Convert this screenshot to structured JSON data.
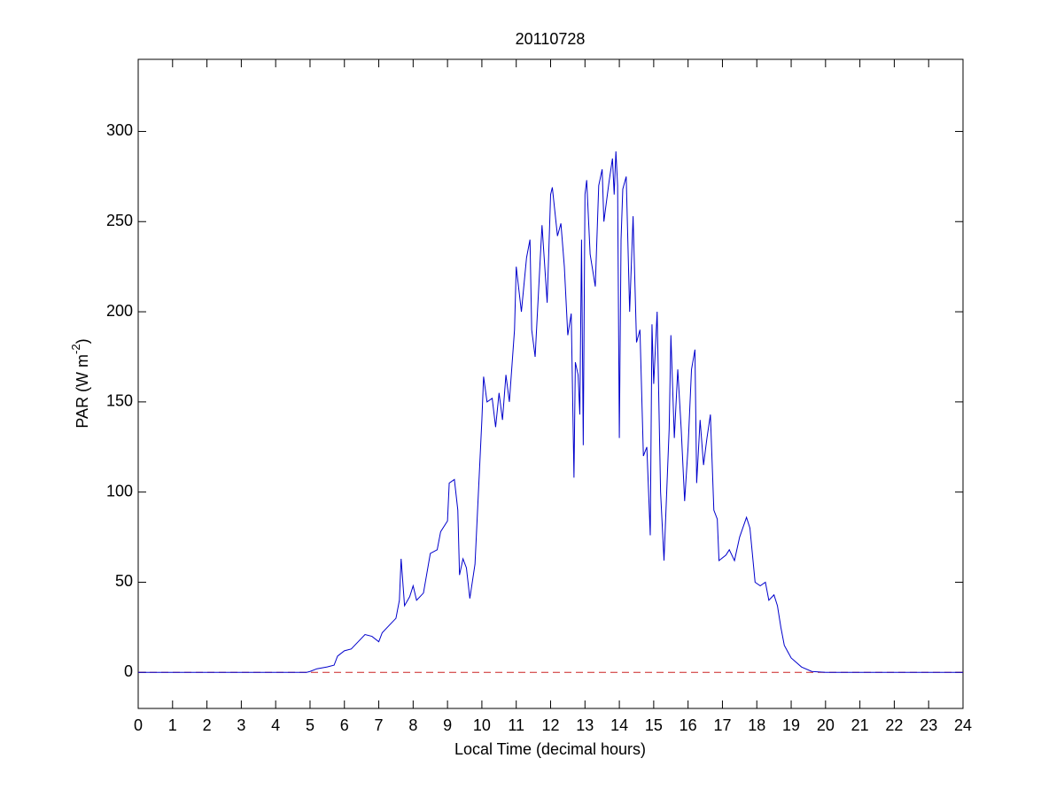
{
  "chart_data": {
    "type": "line",
    "title": "20110728",
    "xlabel": "Local Time (decimal hours)",
    "ylabel": [
      "PAR (W m",
      "-2",
      ")"
    ],
    "xlim": [
      0,
      24
    ],
    "xticks": [
      0,
      1,
      2,
      3,
      4,
      5,
      6,
      7,
      8,
      9,
      10,
      11,
      12,
      13,
      14,
      15,
      16,
      17,
      18,
      19,
      20,
      21,
      22,
      23,
      24
    ],
    "ylim": [
      -20,
      340
    ],
    "yticks": [
      0,
      50,
      100,
      150,
      200,
      250,
      300
    ],
    "grid": false,
    "reference_line": {
      "y": 0,
      "color": "#cc2222",
      "dash": true
    },
    "x": [
      0,
      4.9,
      5.0,
      5.2,
      5.5,
      5.7,
      5.8,
      6.0,
      6.2,
      6.4,
      6.6,
      6.8,
      7.0,
      7.1,
      7.3,
      7.5,
      7.6,
      7.65,
      7.75,
      7.9,
      8.0,
      8.1,
      8.3,
      8.4,
      8.5,
      8.7,
      8.8,
      9.0,
      9.05,
      9.2,
      9.3,
      9.35,
      9.45,
      9.55,
      9.65,
      9.8,
      9.9,
      10.0,
      10.05,
      10.15,
      10.3,
      10.4,
      10.5,
      10.6,
      10.7,
      10.8,
      10.95,
      11.0,
      11.15,
      11.3,
      11.4,
      11.45,
      11.55,
      11.7,
      11.75,
      11.9,
      12.0,
      12.05,
      12.2,
      12.3,
      12.4,
      12.5,
      12.6,
      12.68,
      12.72,
      12.8,
      12.85,
      12.9,
      12.95,
      13.0,
      13.05,
      13.15,
      13.3,
      13.4,
      13.5,
      13.55,
      13.7,
      13.8,
      13.85,
      13.9,
      13.95,
      14.0,
      14.05,
      14.1,
      14.2,
      14.3,
      14.4,
      14.5,
      14.6,
      14.7,
      14.8,
      14.9,
      14.95,
      15.0,
      15.1,
      15.2,
      15.3,
      15.45,
      15.5,
      15.6,
      15.7,
      15.8,
      15.9,
      16.0,
      16.1,
      16.2,
      16.25,
      16.35,
      16.45,
      16.55,
      16.65,
      16.75,
      16.85,
      16.9,
      17.1,
      17.2,
      17.35,
      17.5,
      17.7,
      17.8,
      17.95,
      18.1,
      18.25,
      18.35,
      18.5,
      18.6,
      18.7,
      18.8,
      19.0,
      19.3,
      19.6,
      20.0,
      24
    ],
    "series": [
      {
        "color": "#0000cc",
        "values": [
          0,
          0,
          0.5,
          2,
          3,
          4,
          9,
          12,
          13,
          17,
          21,
          20,
          17,
          22,
          26,
          30,
          40,
          63,
          37,
          42,
          48,
          40,
          44,
          55,
          66,
          68,
          78,
          84,
          105,
          107,
          90,
          54,
          63,
          58,
          41,
          60,
          100,
          140,
          164,
          150,
          152,
          136,
          155,
          140,
          165,
          150,
          190,
          225,
          200,
          230,
          240,
          190,
          175,
          230,
          248,
          205,
          265,
          269,
          242,
          249,
          225,
          187,
          199,
          108,
          172,
          165,
          143,
          240,
          126,
          265,
          273,
          232,
          214,
          270,
          279,
          250,
          272,
          285,
          265,
          289,
          270,
          130,
          240,
          268,
          275,
          200,
          253,
          183,
          190,
          120,
          125,
          76,
          193,
          160,
          200,
          100,
          62,
          135,
          187,
          130,
          168,
          135,
          95,
          125,
          168,
          179,
          105,
          140,
          115,
          130,
          143,
          90,
          85,
          62,
          65,
          68,
          62,
          75,
          86,
          80,
          50,
          48,
          50,
          40,
          43,
          37,
          25,
          15,
          8,
          3,
          0.5,
          0,
          0
        ]
      }
    ]
  }
}
